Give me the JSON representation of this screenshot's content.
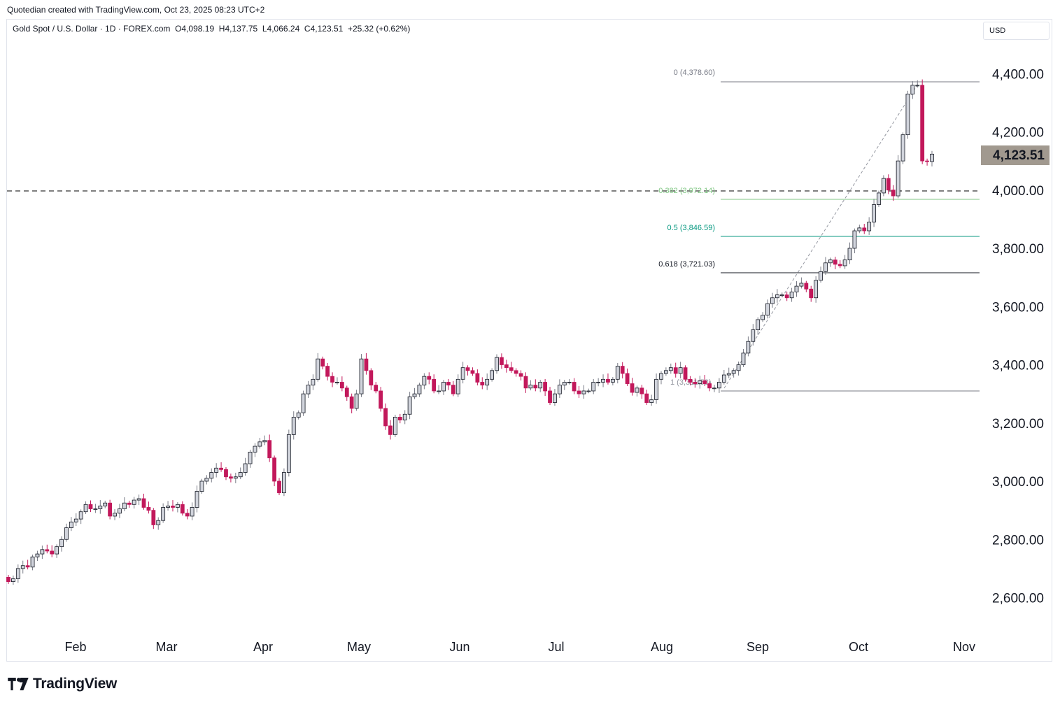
{
  "credit": "Quotedian created with TradingView.com, Oct 23, 2025 08:23 UTC+2",
  "legend": {
    "symbol": "Gold Spot / U.S. Dollar · 1D · FOREX.com",
    "open": "O4,098.19",
    "high": "H4,137.75",
    "low": "L4,066.24",
    "close": "C4,123.51",
    "change": "+25.32 (+0.62%)"
  },
  "currency": "USD",
  "brand": "TradingView",
  "colors": {
    "up": "#787b86",
    "down": "#c2185b",
    "upBody": "#d1d4dc",
    "text": "#131722"
  },
  "chart_data": {
    "type": "candlestick",
    "ylim": [
      2500,
      4500
    ],
    "y_ticks": [
      "2,600.00",
      "2,800.00",
      "3,000.00",
      "3,200.00",
      "3,400.00",
      "3,600.00",
      "3,800.00",
      "4,000.00",
      "4,200.00",
      "4,400.00"
    ],
    "x_ticks": [
      "Feb",
      "Mar",
      "Apr",
      "May",
      "Jun",
      "Jul",
      "Aug",
      "Sep",
      "Oct",
      "Nov"
    ],
    "last_price": "4,123.51",
    "horizontal_line": 4000,
    "closes": [
      2655,
      2665,
      2700,
      2710,
      2705,
      2740,
      2750,
      2765,
      2760,
      2750,
      2775,
      2800,
      2840,
      2860,
      2870,
      2895,
      2920,
      2905,
      2905,
      2915,
      2925,
      2880,
      2890,
      2905,
      2925,
      2920,
      2935,
      2940,
      2910,
      2900,
      2850,
      2865,
      2910,
      2915,
      2910,
      2920,
      2890,
      2880,
      2910,
      2965,
      3000,
      3010,
      3030,
      3045,
      3040,
      3015,
      3010,
      3015,
      3030,
      3060,
      3100,
      3120,
      3135,
      3140,
      3080,
      3000,
      2960,
      3030,
      3160,
      3220,
      3235,
      3300,
      3330,
      3350,
      3420,
      3395,
      3360,
      3340,
      3340,
      3320,
      3290,
      3250,
      3300,
      3420,
      3380,
      3330,
      3310,
      3250,
      3190,
      3160,
      3220,
      3210,
      3230,
      3290,
      3300,
      3330,
      3360,
      3350,
      3310,
      3310,
      3340,
      3330,
      3300,
      3350,
      3390,
      3380,
      3370,
      3340,
      3330,
      3350,
      3380,
      3425,
      3400,
      3390,
      3380,
      3370,
      3360,
      3320,
      3330,
      3320,
      3340,
      3310,
      3270,
      3300,
      3330,
      3340,
      3340,
      3310,
      3300,
      3310,
      3310,
      3340,
      3340,
      3350,
      3340,
      3350,
      3395,
      3370,
      3335,
      3305,
      3320,
      3300,
      3270,
      3280,
      3350,
      3370,
      3380,
      3390,
      3370,
      3390,
      3350,
      3340,
      3335,
      3345,
      3335,
      3320,
      3320,
      3340,
      3365,
      3370,
      3380,
      3400,
      3440,
      3480,
      3520,
      3555,
      3570,
      3610,
      3630,
      3640,
      3640,
      3630,
      3650,
      3670,
      3680,
      3660,
      3630,
      3690,
      3720,
      3750,
      3760,
      3745,
      3740,
      3760,
      3800,
      3860,
      3870,
      3860,
      3890,
      3950,
      3990,
      4040,
      4000,
      3980,
      4100,
      4190,
      4330,
      4360,
      4360,
      4100,
      4098,
      4123.51
    ]
  }
}
